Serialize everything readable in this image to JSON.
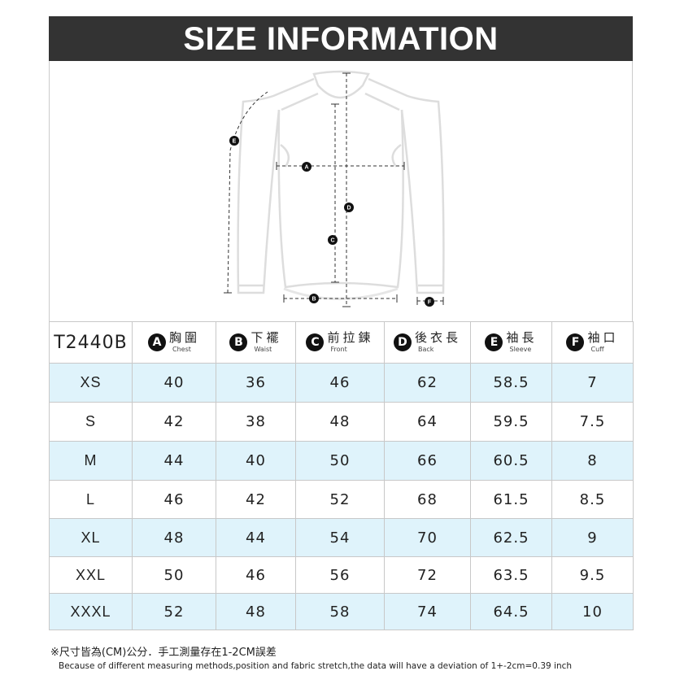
{
  "title": "SIZE INFORMATION",
  "diagram": {
    "markers": [
      "A",
      "B",
      "C",
      "D",
      "E",
      "F"
    ]
  },
  "table": {
    "model": "T2440B",
    "columns": [
      {
        "letter": "A",
        "zh": "胸圍",
        "en": "Chest"
      },
      {
        "letter": "B",
        "zh": "下襬",
        "en": "Waist"
      },
      {
        "letter": "C",
        "zh": "前拉鍊",
        "en": "Front"
      },
      {
        "letter": "D",
        "zh": "後衣長",
        "en": "Back"
      },
      {
        "letter": "E",
        "zh": "袖長",
        "en": "Sleeve"
      },
      {
        "letter": "F",
        "zh": "袖口",
        "en": "Cuff"
      }
    ],
    "rows": [
      [
        "XS",
        "40",
        "36",
        "46",
        "62",
        "58.5",
        "7"
      ],
      [
        "S",
        "42",
        "38",
        "48",
        "64",
        "59.5",
        "7.5"
      ],
      [
        "M",
        "44",
        "40",
        "50",
        "66",
        "60.5",
        "8"
      ],
      [
        "L",
        "46",
        "42",
        "52",
        "68",
        "61.5",
        "8.5"
      ],
      [
        "XL",
        "48",
        "44",
        "54",
        "70",
        "62.5",
        "9"
      ],
      [
        "XXL",
        "50",
        "46",
        "56",
        "72",
        "63.5",
        "9.5"
      ],
      [
        "XXXL",
        "52",
        "48",
        "58",
        "74",
        "64.5",
        "10"
      ]
    ]
  },
  "notes": {
    "zh": "※尺寸皆為(CM)公分．手工測量存在1-2CM誤差",
    "en": "Because of different measuring methods,position and fabric stretch,the data will have a deviation of 1+-2cm=0.39 inch"
  },
  "colors": {
    "header_bg": "#333333",
    "row_highlight": "#dff3fb"
  }
}
